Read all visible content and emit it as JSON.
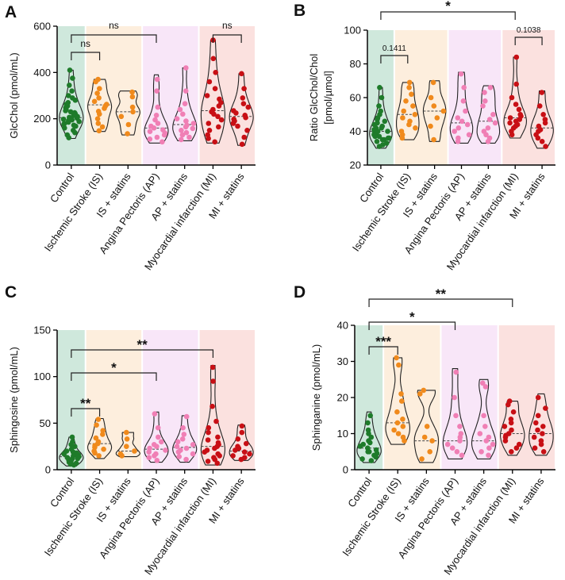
{
  "chart_data": [
    {
      "panel": "A",
      "type": "violin",
      "ylabel": "GlcChol (pmol/mL)",
      "ylim": [
        0,
        600
      ],
      "yticks": [
        0,
        200,
        400,
        600
      ],
      "categories": [
        "Control",
        "Ischemic Stroke (IS)",
        "IS + statins",
        "Angina Pectoris (AP)",
        "AP + statins",
        "Myocardial infarction (MI)",
        "MI + statins"
      ],
      "groups": [
        {
          "name": "Control",
          "range": [
            115,
            410
          ],
          "median": 205,
          "points": [
            410,
            375,
            345,
            320,
            300,
            290,
            280,
            270,
            262,
            255,
            248,
            240,
            235,
            230,
            226,
            222,
            218,
            214,
            210,
            206,
            202,
            198,
            195,
            192,
            188,
            185,
            180,
            176,
            172,
            168,
            160,
            150,
            140,
            130,
            118
          ]
        },
        {
          "name": "Ischemic Stroke (IS)",
          "range": [
            145,
            370
          ],
          "median": 260,
          "points": [
            370,
            360,
            330,
            310,
            290,
            275,
            262,
            255,
            245,
            232,
            220,
            200,
            180,
            165,
            148
          ]
        },
        {
          "name": "IS + statins",
          "range": [
            130,
            320
          ],
          "median": 230,
          "points": [
            315,
            295,
            250,
            230,
            210,
            175,
            135
          ]
        },
        {
          "name": "Angina Pectoris (AP)",
          "range": [
            95,
            390
          ],
          "median": 160,
          "points": [
            370,
            320,
            250,
            215,
            195,
            180,
            168,
            160,
            152,
            145,
            138,
            130,
            120,
            112,
            100
          ]
        },
        {
          "name": "AP + statins",
          "range": [
            105,
            420
          ],
          "median": 175,
          "points": [
            420,
            320,
            265,
            240,
            220,
            200,
            190,
            180,
            172,
            165,
            158,
            150,
            140,
            130,
            120,
            110
          ]
        },
        {
          "name": "Myocardial infarction (MI)",
          "range": [
            95,
            540
          ],
          "median": 235,
          "points": [
            540,
            460,
            400,
            360,
            330,
            300,
            285,
            270,
            255,
            240,
            230,
            220,
            210,
            195,
            180,
            165,
            150,
            130,
            115,
            100
          ]
        },
        {
          "name": "MI + statins",
          "range": [
            85,
            395
          ],
          "median": 210,
          "points": [
            395,
            330,
            290,
            265,
            250,
            235,
            225,
            215,
            205,
            198,
            190,
            180,
            168,
            150,
            120,
            90
          ]
        }
      ],
      "annotations": [
        {
          "from": "Control",
          "to": "Ischemic Stroke (IS)",
          "text": "ns"
        },
        {
          "from": "Control",
          "to": "Angina Pectoris (AP)",
          "text": "ns"
        },
        {
          "from": "Myocardial infarction (MI)",
          "to": "MI + statins",
          "text": "ns"
        }
      ]
    },
    {
      "panel": "B",
      "type": "violin",
      "ylabel": "Ratio GlcChol/Chol [pmol/µmol]",
      "ylim": [
        20,
        100
      ],
      "yticks": [
        20,
        40,
        60,
        80,
        100
      ],
      "categories": [
        "Control",
        "Ischemic Stroke (IS)",
        "IS + statins",
        "Angina Pectoris (AP)",
        "AP + statins",
        "Myocardial infarction (MI)",
        "MI + statins"
      ],
      "groups": [
        {
          "name": "Control",
          "range": [
            30,
            66
          ],
          "median": 40,
          "points": [
            66,
            60,
            55,
            52,
            50,
            48,
            47,
            46,
            45,
            44,
            43,
            42,
            42,
            41,
            40,
            40,
            39,
            39,
            38,
            38,
            37,
            37,
            36,
            36,
            35,
            35,
            34,
            33,
            32,
            31
          ]
        },
        {
          "name": "Ischemic Stroke (IS)",
          "range": [
            35,
            69
          ],
          "median": 50,
          "points": [
            69,
            66,
            62,
            58,
            55,
            52,
            50,
            48,
            46,
            44,
            42,
            40,
            38,
            36
          ]
        },
        {
          "name": "IS + statins",
          "range": [
            34,
            70
          ],
          "median": 52,
          "points": [
            69,
            60,
            55,
            52,
            48,
            43,
            35
          ]
        },
        {
          "name": "Angina Pectoris (AP)",
          "range": [
            33,
            75
          ],
          "median": 45,
          "points": [
            74,
            66,
            58,
            52,
            48,
            46,
            44,
            42,
            40,
            38,
            36,
            34
          ]
        },
        {
          "name": "AP + statins",
          "range": [
            33,
            67
          ],
          "median": 46,
          "points": [
            66,
            63,
            58,
            55,
            50,
            47,
            45,
            42,
            40,
            38,
            36,
            34
          ]
        },
        {
          "name": "Myocardial infarction (MI)",
          "range": [
            36,
            84
          ],
          "median": 48,
          "points": [
            84,
            68,
            60,
            56,
            53,
            50,
            49,
            48,
            47,
            46,
            45,
            44,
            43,
            42,
            40,
            38
          ]
        },
        {
          "name": "MI + statins",
          "range": [
            30,
            64
          ],
          "median": 42,
          "points": [
            63,
            55,
            50,
            47,
            45,
            43,
            41,
            40,
            38,
            36,
            34,
            31
          ]
        }
      ],
      "annotations": [
        {
          "from": "Control",
          "to": "Ischemic Stroke (IS)",
          "text": "0.1411"
        },
        {
          "from": "Myocardial infarction (MI)",
          "to": "MI + statins",
          "text": "0.1038"
        },
        {
          "from": "Control",
          "to": "Myocardial infarction (MI)",
          "text": "*"
        }
      ]
    },
    {
      "panel": "C",
      "type": "violin",
      "ylabel": "Sphingosine (pmol/mL)",
      "ylim": [
        0,
        150
      ],
      "yticks": [
        0,
        50,
        100,
        150
      ],
      "categories": [
        "Control",
        "Ischemic Stroke (IS)",
        "IS + statins",
        "Angina Pectoris (AP)",
        "AP + statins",
        "Myocardial infarction (MI)",
        "MI + statins"
      ],
      "groups": [
        {
          "name": "Control",
          "range": [
            4,
            35
          ],
          "median": 14,
          "points": [
            35,
            30,
            27,
            25,
            22,
            20,
            19,
            18,
            17,
            16,
            15,
            14,
            14,
            13,
            12,
            12,
            11,
            10,
            9,
            8,
            7,
            6,
            5
          ]
        },
        {
          "name": "Ischemic Stroke (IS)",
          "range": [
            12,
            55
          ],
          "median": 28,
          "points": [
            54,
            48,
            42,
            38,
            34,
            30,
            28,
            26,
            24,
            22,
            20,
            18,
            15
          ]
        },
        {
          "name": "IS + statins",
          "range": [
            14,
            40
          ],
          "median": 20,
          "points": [
            40,
            33,
            25,
            20,
            17,
            15
          ]
        },
        {
          "name": "Angina Pectoris (AP)",
          "range": [
            8,
            62
          ],
          "median": 22,
          "points": [
            60,
            45,
            35,
            30,
            27,
            25,
            23,
            21,
            19,
            17,
            15,
            13,
            10
          ]
        },
        {
          "name": "AP + statins",
          "range": [
            8,
            58
          ],
          "median": 24,
          "points": [
            57,
            45,
            38,
            33,
            30,
            27,
            25,
            23,
            21,
            19,
            17,
            14,
            11
          ]
        },
        {
          "name": "Myocardial infarction (MI)",
          "range": [
            5,
            112
          ],
          "median": 25,
          "points": [
            110,
            95,
            68,
            52,
            45,
            40,
            35,
            32,
            29,
            27,
            25,
            23,
            21,
            19,
            17,
            15,
            13,
            11,
            9,
            7
          ]
        },
        {
          "name": "MI + statins",
          "range": [
            10,
            48
          ],
          "median": 20,
          "points": [
            47,
            40,
            33,
            28,
            25,
            23,
            21,
            19,
            17,
            15,
            13,
            11
          ]
        }
      ],
      "annotations": [
        {
          "from": "Control",
          "to": "Ischemic Stroke (IS)",
          "text": "**"
        },
        {
          "from": "Control",
          "to": "Angina Pectoris (AP)",
          "text": "*"
        },
        {
          "from": "Control",
          "to": "Myocardial infarction (MI)",
          "text": "**"
        }
      ]
    },
    {
      "panel": "D",
      "type": "violin",
      "ylabel": "Sphinganine (pmol/mL)",
      "ylim": [
        0,
        40
      ],
      "yticks": [
        0,
        10,
        20,
        30,
        40
      ],
      "categories": [
        "Control",
        "Ischemic Stroke (IS)",
        "IS + statins",
        "Angina Pectoris (AP)",
        "AP + statins",
        "Myocardial infarction (MI)",
        "MI + statins"
      ],
      "groups": [
        {
          "name": "Control",
          "range": [
            2,
            16
          ],
          "median": 6,
          "points": [
            15,
            13,
            11,
            10,
            9,
            8,
            7.5,
            7,
            6.5,
            6,
            5.5,
            5,
            5,
            4.5,
            4,
            3.5,
            3,
            2.5
          ]
        },
        {
          "name": "Ischemic Stroke (IS)",
          "range": [
            7,
            31
          ],
          "median": 13,
          "points": [
            31,
            29,
            21,
            19,
            16,
            14,
            13,
            12,
            11,
            10,
            9,
            8
          ]
        },
        {
          "name": "IS + statins",
          "range": [
            2,
            22
          ],
          "median": 8,
          "points": [
            22,
            21,
            12,
            9,
            8,
            5,
            3
          ]
        },
        {
          "name": "Angina Pectoris (AP)",
          "range": [
            3,
            28
          ],
          "median": 8,
          "points": [
            27,
            20,
            15,
            12,
            10,
            9,
            8,
            7,
            6,
            5,
            4
          ]
        },
        {
          "name": "AP + statins",
          "range": [
            3,
            25
          ],
          "median": 8,
          "points": [
            24,
            23,
            15,
            12,
            10,
            9,
            8,
            7,
            6,
            5,
            4
          ]
        },
        {
          "name": "Myocardial infarction (MI)",
          "range": [
            4,
            19
          ],
          "median": 10,
          "points": [
            19,
            18,
            16,
            14,
            13,
            12,
            11,
            10,
            9.5,
            9,
            8,
            7,
            6,
            5
          ]
        },
        {
          "name": "MI + statins",
          "range": [
            4,
            21
          ],
          "median": 10,
          "points": [
            20,
            17,
            15,
            13,
            12,
            11,
            10,
            9,
            8,
            7,
            6,
            5
          ]
        }
      ],
      "annotations": [
        {
          "from": "Control",
          "to": "Ischemic Stroke (IS)",
          "text": "***"
        },
        {
          "from": "Control",
          "to": "Angina Pectoris (AP)",
          "text": "*"
        },
        {
          "from": "Control",
          "to": "Myocardial infarction (MI)",
          "text": "**"
        }
      ]
    }
  ],
  "colors": {
    "Control": "#1e7b2a",
    "Ischemic Stroke (IS)": "#f08a1c",
    "IS + statins": "#f08a1c",
    "Angina Pectoris (AP)": "#f07fb5",
    "AP + statins": "#f07fb5",
    "Myocardial infarction (MI)": "#c80f15",
    "MI + statins": "#c80f15",
    "bg_control": "#cfe8dc",
    "bg_is": "#fdeedd",
    "bg_ap": "#f8e6f8",
    "bg_mi": "#fbe1df"
  }
}
